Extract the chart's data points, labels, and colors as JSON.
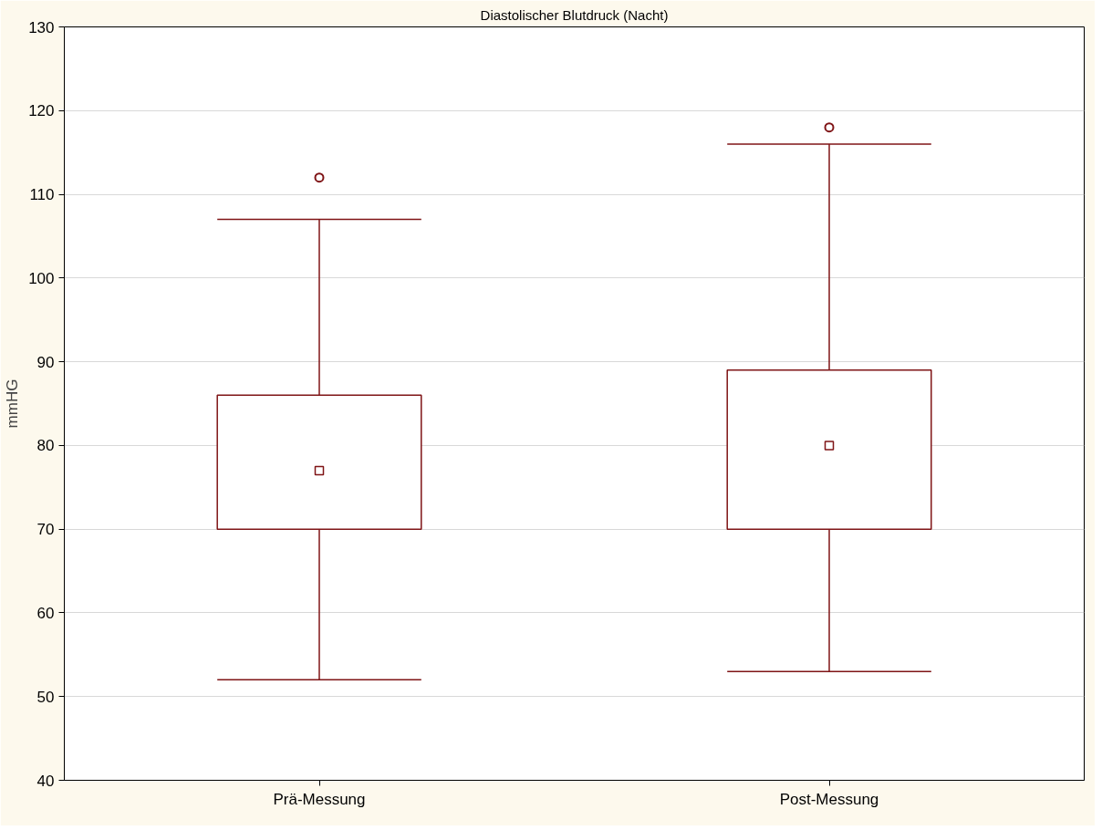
{
  "chart_data": {
    "type": "box",
    "title": "Diastolischer Blutdruck (Nacht)",
    "ylabel": "mmHG",
    "categories": [
      "Prä-Messung",
      "Post-Messung"
    ],
    "boxes": [
      {
        "low": 52,
        "q1": 70,
        "median": 77,
        "q3": 86,
        "high": 107,
        "outliers": [
          112
        ]
      },
      {
        "low": 53,
        "q1": 70,
        "median": 80,
        "q3": 89,
        "high": 116,
        "outliers": [
          118
        ]
      }
    ],
    "color": "#7f1416",
    "ylim": [
      40,
      130
    ],
    "yticks": [
      40,
      50,
      60,
      70,
      80,
      90,
      100,
      110,
      120,
      130
    ],
    "grid": "y"
  }
}
